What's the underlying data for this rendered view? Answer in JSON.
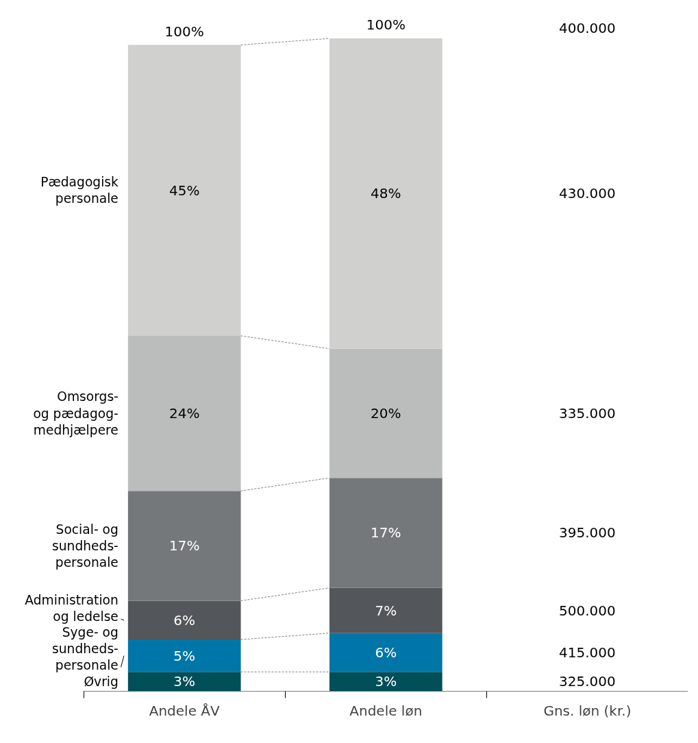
{
  "chart_data": {
    "type": "bar",
    "stacked": true,
    "categories": [
      "Andele ÅV",
      "Andele løn",
      "Gns. løn (kr.)"
    ],
    "series": [
      {
        "name": "Øvrig",
        "color": "#004f59",
        "values": [
          3,
          3,
          null
        ],
        "value_labels": [
          "3%",
          "3%",
          "325.000"
        ]
      },
      {
        "name": "Syge- og\nsundheds-\npersonale",
        "color": "#0076a8",
        "values": [
          5,
          6,
          null
        ],
        "value_labels": [
          "5%",
          "6%",
          "415.000"
        ]
      },
      {
        "name": "Administration\nog ledelse",
        "color": "#53565a",
        "values": [
          6,
          7,
          null
        ],
        "value_labels": [
          "6%",
          "7%",
          "500.000"
        ]
      },
      {
        "name": "Social- og\nsundheds-\npersonale",
        "color": "#75787b",
        "values": [
          17,
          17,
          null
        ],
        "value_labels": [
          "17%",
          "17%",
          "395.000"
        ]
      },
      {
        "name": "Omsorgs-\nog pædagog-\nmedhjælpere",
        "color": "#bbbdbc",
        "values": [
          24,
          20,
          null
        ],
        "value_labels": [
          "24%",
          "20%",
          "335.000"
        ]
      },
      {
        "name": "Pædagogisk\npersonale",
        "color": "#d0d0ce",
        "values": [
          45,
          48,
          null
        ],
        "value_labels": [
          "45%",
          "48%",
          "430.000"
        ]
      }
    ],
    "totals": [
      "100%",
      "100%"
    ],
    "annotations": [
      "400.000"
    ],
    "grid": false
  }
}
